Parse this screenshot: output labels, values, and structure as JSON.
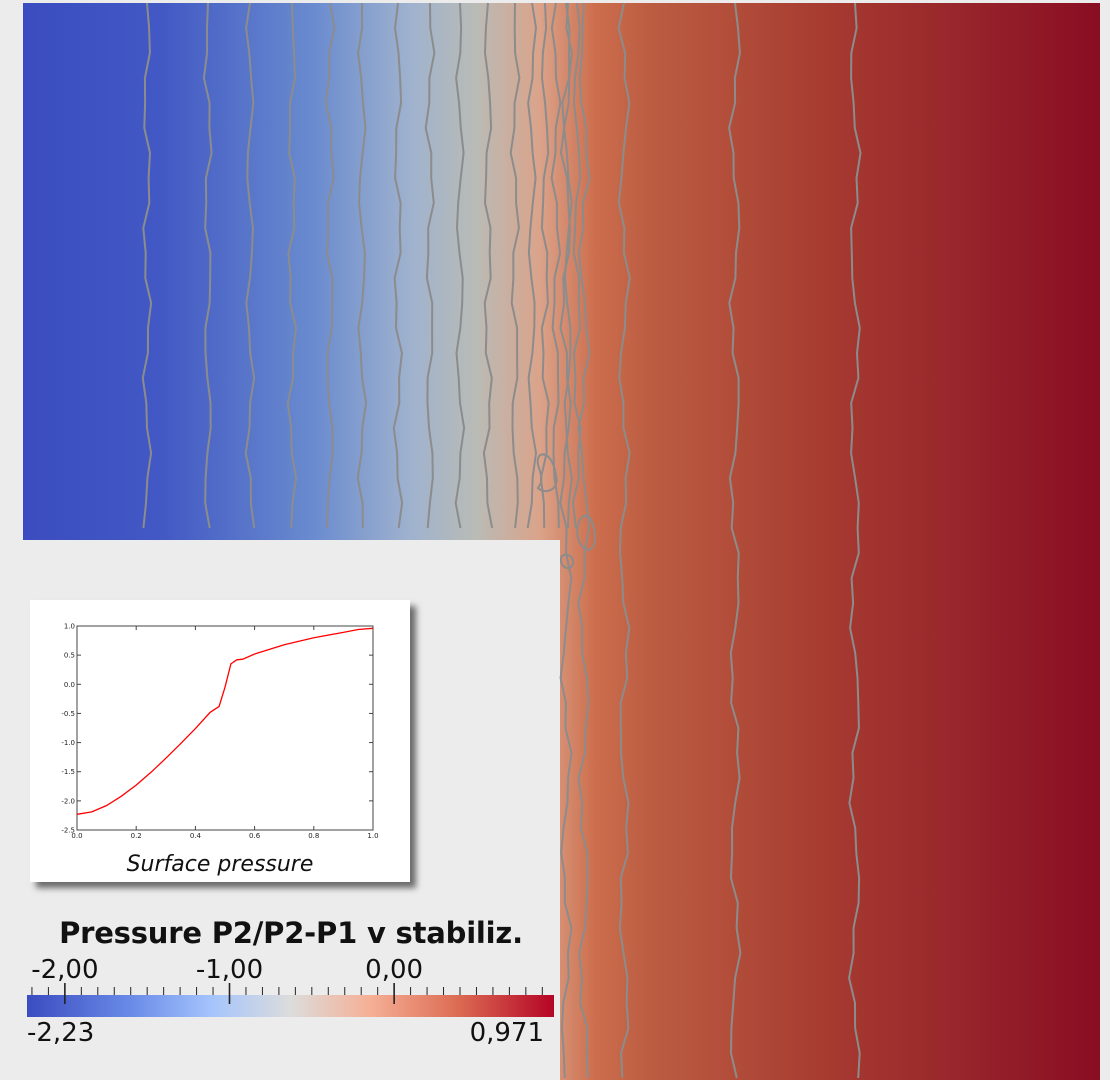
{
  "field": {
    "colormap": [
      "#3b4cc0",
      "#dddcdc",
      "#b40426"
    ],
    "contour_color": "#8c8c8c",
    "background": "#ececec"
  },
  "chart_data": [
    {
      "type": "line",
      "title": "Surface pressure",
      "xlabel": "",
      "ylabel": "",
      "xlim": [
        0.0,
        1.0
      ],
      "ylim": [
        -2.5,
        1.0
      ],
      "xticks": [
        "0.0",
        "0.2",
        "0.4",
        "0.6",
        "0.8",
        "1.0"
      ],
      "yticks": [
        "-2.5",
        "-2.0",
        "-1.5",
        "-1.0",
        "-0.5",
        "0.0",
        "0.5",
        "1.0"
      ],
      "grid": false,
      "series": [
        {
          "color": "#ff0000",
          "x": [
            0.0,
            0.05,
            0.1,
            0.15,
            0.2,
            0.25,
            0.3,
            0.35,
            0.4,
            0.45,
            0.48,
            0.5,
            0.52,
            0.54,
            0.56,
            0.6,
            0.7,
            0.8,
            0.9,
            0.95,
            1.0
          ],
          "y": [
            -2.23,
            -2.19,
            -2.08,
            -1.92,
            -1.73,
            -1.51,
            -1.27,
            -1.02,
            -0.76,
            -0.48,
            -0.38,
            -0.05,
            0.35,
            0.42,
            0.43,
            0.52,
            0.68,
            0.8,
            0.89,
            0.94,
            0.96
          ]
        }
      ]
    },
    {
      "type": "heatmap",
      "title": "Pressure P2/P2-P1 v stabiliz.",
      "colorbar": {
        "range": [
          -2.23,
          0.971
        ],
        "ticks": [
          "-2,00",
          "-1,00",
          "0,00"
        ],
        "tick_values": [
          -2.0,
          -1.0,
          0.0
        ],
        "min_label": "-2,23",
        "max_label": "0,971"
      }
    }
  ]
}
